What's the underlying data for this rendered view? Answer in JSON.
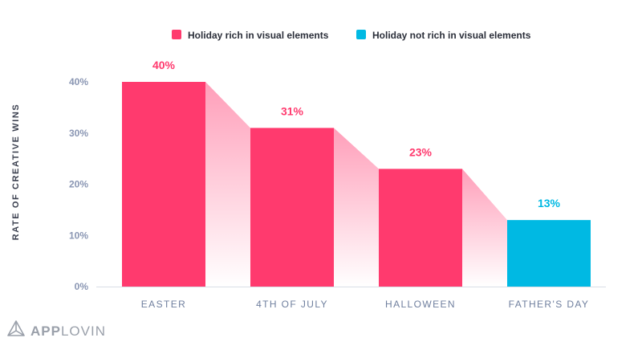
{
  "chart_data": {
    "type": "bar",
    "categories": [
      "EASTER",
      "4TH OF JULY",
      "HALLOWEEN",
      "FATHER'S DAY"
    ],
    "values": [
      40,
      31,
      23,
      13
    ],
    "value_labels": [
      "40%",
      "31%",
      "23%",
      "13%"
    ],
    "bar_series": [
      "rich",
      "rich",
      "rich",
      "not_rich"
    ],
    "series": [
      {
        "key": "rich",
        "name": "Holiday rich in visual elements",
        "color": "#ff3a6e"
      },
      {
        "key": "not_rich",
        "name": "Holiday not rich in visual elements",
        "color": "#00b9e3"
      }
    ],
    "ylabel": "RATE OF CREATIVE WINS",
    "xlabel": "",
    "ylim": [
      0,
      40
    ],
    "yticks": [
      0,
      10,
      20,
      30,
      40
    ],
    "ytick_labels": [
      "0%",
      "10%",
      "20%",
      "30%",
      "40%"
    ],
    "legend_position": "top",
    "grid": false
  },
  "brand": {
    "name_part1": "APP",
    "name_part2": "LOVIN",
    "logo_icon": "applovin-triangle-icon"
  },
  "colors": {
    "axis_text": "#8a96b3",
    "category_text": "#6f7f9e",
    "baseline": "#d8dde6",
    "connector": "#ff6f95",
    "brand_text": "#9aa0aa"
  }
}
